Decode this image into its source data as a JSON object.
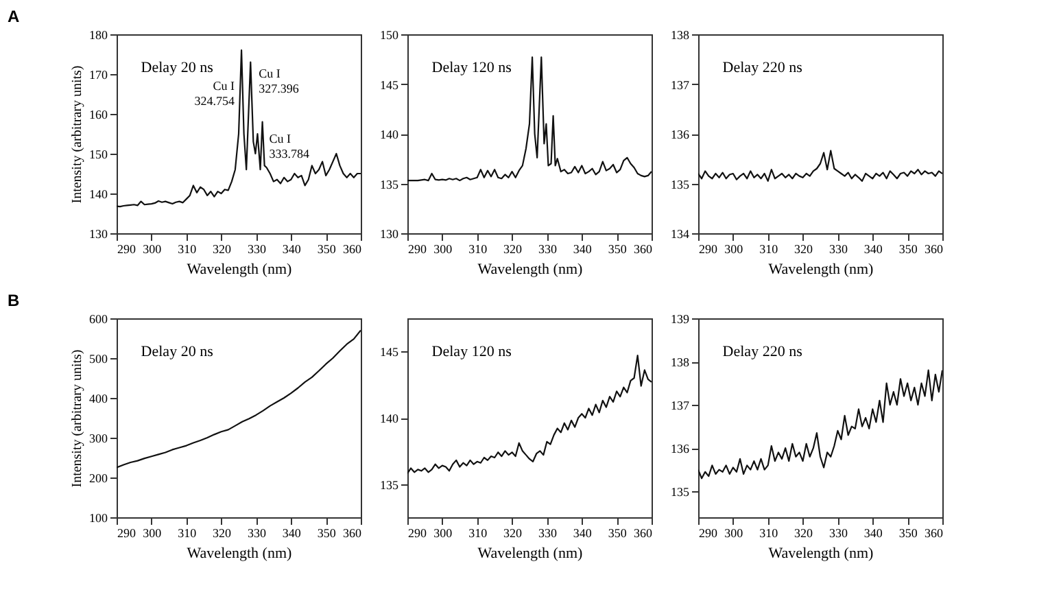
{
  "chart_data": [
    {
      "type": "line",
      "title": "A",
      "xlabel": "Wavelength (nm)",
      "ylabel": "Intensity (arbitrary units)",
      "xlim": [
        290,
        360
      ],
      "ylim": [
        130,
        180
      ],
      "xticks": [
        290,
        300,
        310,
        320,
        330,
        340,
        350,
        360
      ],
      "yticks": [
        130,
        140,
        150,
        160,
        170,
        180
      ],
      "x": [
        290,
        291,
        292,
        293,
        294,
        295,
        296,
        297,
        298,
        299,
        300,
        301,
        302,
        303,
        304,
        305,
        306,
        307,
        308,
        309,
        310,
        311,
        312,
        313,
        314,
        315,
        316,
        317,
        318,
        319,
        320,
        321,
        322,
        323,
        324,
        325,
        325.8,
        326.5,
        327.2,
        328.4,
        329.2,
        329.8,
        330.4,
        331.2,
        331.8,
        332.4,
        333,
        334,
        335,
        336,
        337,
        338,
        339,
        340,
        341,
        342,
        343,
        344,
        345,
        346,
        347,
        348,
        349,
        350,
        351,
        352,
        353,
        354,
        355,
        356,
        357,
        358,
        359,
        360
      ],
      "series": [
        {
          "color": "#111111",
          "values": [
            136.8,
            136.7,
            136.9,
            137,
            137.1,
            137.2,
            137,
            138,
            137.2,
            137.3,
            137.4,
            137.6,
            138.1,
            137.8,
            138,
            137.7,
            137.4,
            137.8,
            138,
            137.7,
            138.6,
            139.5,
            142,
            140.2,
            141.6,
            141,
            139.5,
            140.5,
            139.2,
            140.5,
            140,
            141,
            140.8,
            143,
            146,
            155,
            176,
            155,
            146,
            173,
            153,
            150,
            155,
            146,
            158,
            147,
            146.5,
            145,
            143,
            143.5,
            142.5,
            144,
            143,
            143.5,
            145,
            144,
            144.5,
            142,
            143.5,
            147,
            145,
            146,
            148,
            144.5,
            146,
            148,
            150,
            147,
            145,
            144,
            145,
            144,
            145,
            145
          ]
        }
      ],
      "annotations": [
        "Delay 20 ns",
        {
          "text": "Cu I\n324.754",
          "x": 325.8,
          "y": 176
        },
        {
          "text": "Cu I\n327.396",
          "x": 328.4,
          "y": 173
        },
        {
          "text": "Cu I\n333.784",
          "x": 331.8,
          "y": 158
        }
      ]
    },
    {
      "type": "line",
      "xlabel": "Wavelength (nm)",
      "xlim": [
        290,
        360
      ],
      "ylim": [
        130,
        150
      ],
      "xticks": [
        290,
        300,
        310,
        320,
        330,
        340,
        350,
        360
      ],
      "yticks": [
        130,
        135,
        140,
        145,
        150
      ],
      "x": [
        290,
        291,
        292,
        293,
        294,
        295,
        296,
        297,
        298,
        299,
        300,
        301,
        302,
        303,
        304,
        305,
        306,
        307,
        308,
        309,
        310,
        311,
        312,
        313,
        314,
        315,
        316,
        317,
        318,
        319,
        320,
        321,
        322,
        323,
        324,
        325,
        325.8,
        326.5,
        327.2,
        328.4,
        329.2,
        329.8,
        330.4,
        331.2,
        331.8,
        332.4,
        333,
        334,
        335,
        336,
        337,
        338,
        339,
        340,
        341,
        342,
        343,
        344,
        345,
        346,
        347,
        348,
        349,
        350,
        351,
        352,
        353,
        354,
        355,
        356,
        357,
        358,
        359,
        360
      ],
      "series": [
        {
          "color": "#111111",
          "values": [
            135.3,
            135.3,
            135.3,
            135.3,
            135.35,
            135.4,
            135.3,
            136,
            135.4,
            135.35,
            135.4,
            135.35,
            135.5,
            135.4,
            135.5,
            135.3,
            135.5,
            135.6,
            135.4,
            135.5,
            135.6,
            136.4,
            135.6,
            136.3,
            135.7,
            136.4,
            135.6,
            135.5,
            135.9,
            135.6,
            136.2,
            135.6,
            136.3,
            136.8,
            138.5,
            141,
            147.7,
            140,
            137.6,
            147.7,
            139,
            141,
            136.8,
            137,
            141.8,
            136.8,
            137.5,
            136.2,
            136.4,
            136,
            136.1,
            136.7,
            136.1,
            136.8,
            136,
            136.2,
            136.5,
            135.9,
            136.2,
            137.2,
            136.3,
            136.5,
            136.9,
            136.1,
            136.4,
            137.3,
            137.6,
            137,
            136.6,
            136,
            135.8,
            135.7,
            135.8,
            136.2
          ]
        }
      ],
      "annotations": [
        "Delay 120 ns"
      ]
    },
    {
      "type": "line",
      "xlabel": "Wavelength (nm)",
      "xlim": [
        290,
        360
      ],
      "ylim": [
        134,
        138
      ],
      "xticks": [
        290,
        300,
        310,
        320,
        330,
        340,
        350,
        360
      ],
      "yticks": [
        134,
        135,
        136,
        137,
        138
      ],
      "x": [
        290,
        291,
        292,
        293,
        294,
        295,
        296,
        297,
        298,
        299,
        300,
        301,
        302,
        303,
        304,
        305,
        306,
        307,
        308,
        309,
        310,
        311,
        312,
        313,
        314,
        315,
        316,
        317,
        318,
        319,
        320,
        321,
        322,
        323,
        324,
        325,
        326,
        327,
        328,
        329,
        330,
        331,
        332,
        333,
        334,
        335,
        336,
        337,
        338,
        339,
        340,
        341,
        342,
        343,
        344,
        345,
        346,
        347,
        348,
        349,
        350,
        351,
        352,
        353,
        354,
        355,
        356,
        357,
        358,
        359,
        360
      ],
      "series": [
        {
          "color": "#111111",
          "values": [
            135.2,
            135.1,
            135.25,
            135.15,
            135.1,
            135.2,
            135.12,
            135.22,
            135.1,
            135.18,
            135.2,
            135.08,
            135.15,
            135.2,
            135.1,
            135.25,
            135.12,
            135.18,
            135.1,
            135.2,
            135.05,
            135.28,
            135.1,
            135.15,
            135.2,
            135.12,
            135.18,
            135.1,
            135.2,
            135.15,
            135.12,
            135.2,
            135.15,
            135.25,
            135.3,
            135.4,
            135.62,
            135.28,
            135.66,
            135.3,
            135.25,
            135.2,
            135.15,
            135.22,
            135.1,
            135.18,
            135.12,
            135.05,
            135.2,
            135.15,
            135.1,
            135.2,
            135.15,
            135.22,
            135.1,
            135.25,
            135.18,
            135.1,
            135.2,
            135.22,
            135.15,
            135.25,
            135.2,
            135.28,
            135.18,
            135.25,
            135.2,
            135.22,
            135.15,
            135.25,
            135.2
          ]
        }
      ],
      "annotations": [
        "Delay 220 ns"
      ]
    },
    {
      "type": "line",
      "title": "B",
      "xlabel": "Wavelength (nm)",
      "ylabel": "Intensity (arbitrary units)",
      "xlim": [
        290,
        360
      ],
      "ylim": [
        100,
        600
      ],
      "xticks": [
        290,
        300,
        310,
        320,
        330,
        340,
        350,
        360
      ],
      "yticks": [
        100,
        200,
        300,
        400,
        500,
        600
      ],
      "x": [
        290,
        292,
        294,
        296,
        298,
        300,
        302,
        304,
        306,
        308,
        310,
        312,
        314,
        316,
        318,
        320,
        322,
        324,
        326,
        328,
        330,
        332,
        334,
        336,
        338,
        340,
        342,
        344,
        346,
        348,
        350,
        352,
        354,
        356,
        358,
        360
      ],
      "series": [
        {
          "color": "#111111",
          "values": [
            225,
            232,
            238,
            242,
            248,
            253,
            258,
            263,
            270,
            275,
            280,
            287,
            293,
            300,
            308,
            315,
            320,
            330,
            340,
            348,
            357,
            368,
            380,
            390,
            400,
            412,
            425,
            440,
            452,
            468,
            485,
            500,
            518,
            535,
            548,
            570
          ]
        }
      ],
      "annotations": [
        "Delay 20 ns"
      ]
    },
    {
      "type": "line",
      "xlabel": "Wavelength (nm)",
      "xlim": [
        290,
        360
      ],
      "ylim": [
        132.5,
        147.5
      ],
      "xticks": [
        290,
        300,
        310,
        320,
        330,
        340,
        350,
        360
      ],
      "yticks": [
        135,
        140,
        145
      ],
      "x": [
        290,
        291,
        292,
        293,
        294,
        295,
        296,
        297,
        298,
        299,
        300,
        301,
        302,
        303,
        304,
        305,
        306,
        307,
        308,
        309,
        310,
        311,
        312,
        313,
        314,
        315,
        316,
        317,
        318,
        319,
        320,
        321,
        322,
        323,
        324,
        325,
        326,
        327,
        328,
        329,
        330,
        331,
        332,
        333,
        334,
        335,
        336,
        337,
        338,
        339,
        340,
        341,
        342,
        343,
        344,
        345,
        346,
        347,
        348,
        349,
        350,
        351,
        352,
        353,
        354,
        355,
        356,
        357,
        358,
        359,
        360
      ],
      "series": [
        {
          "color": "#111111",
          "values": [
            135.8,
            136.2,
            135.9,
            136.1,
            136.0,
            136.2,
            135.9,
            136.1,
            136.5,
            136.2,
            136.4,
            136.3,
            136.0,
            136.5,
            136.8,
            136.3,
            136.6,
            136.4,
            136.8,
            136.5,
            136.7,
            136.6,
            137.0,
            136.8,
            137.1,
            137.0,
            137.4,
            137.1,
            137.5,
            137.2,
            137.4,
            137.1,
            138.1,
            137.5,
            137.2,
            136.9,
            136.7,
            137.3,
            137.5,
            137.2,
            138.2,
            138.0,
            138.7,
            139.2,
            138.9,
            139.6,
            139.1,
            139.8,
            139.3,
            140.0,
            140.3,
            140.0,
            140.7,
            140.2,
            141.0,
            140.4,
            141.3,
            140.8,
            141.6,
            141.2,
            142.0,
            141.6,
            142.3,
            141.9,
            142.8,
            143.0,
            144.7,
            142.4,
            143.6,
            142.9,
            142.7
          ]
        }
      ],
      "annotations": [
        "Delay 120 ns"
      ]
    },
    {
      "type": "line",
      "xlabel": "Wavelength (nm)",
      "xlim": [
        290,
        360
      ],
      "ylim": [
        134.4,
        139
      ],
      "xticks": [
        290,
        300,
        310,
        320,
        330,
        340,
        350,
        360
      ],
      "yticks": [
        135,
        136,
        137,
        138,
        139
      ],
      "x": [
        290,
        291,
        292,
        293,
        294,
        295,
        296,
        297,
        298,
        299,
        300,
        301,
        302,
        303,
        304,
        305,
        306,
        307,
        308,
        309,
        310,
        311,
        312,
        313,
        314,
        315,
        316,
        317,
        318,
        319,
        320,
        321,
        322,
        323,
        324,
        325,
        326,
        327,
        328,
        329,
        330,
        331,
        332,
        333,
        334,
        335,
        336,
        337,
        338,
        339,
        340,
        341,
        342,
        343,
        344,
        345,
        346,
        347,
        348,
        349,
        350,
        351,
        352,
        353,
        354,
        355,
        356,
        357,
        358,
        359,
        360
      ],
      "series": [
        {
          "color": "#111111",
          "values": [
            135.5,
            135.3,
            135.45,
            135.35,
            135.6,
            135.4,
            135.5,
            135.45,
            135.6,
            135.4,
            135.55,
            135.45,
            135.75,
            135.4,
            135.6,
            135.5,
            135.7,
            135.5,
            135.75,
            135.5,
            135.6,
            136.05,
            135.7,
            135.9,
            135.75,
            136.0,
            135.7,
            136.1,
            135.8,
            135.9,
            135.7,
            136.1,
            135.8,
            136.0,
            136.35,
            135.8,
            135.55,
            135.9,
            135.8,
            136.05,
            136.4,
            136.2,
            136.75,
            136.3,
            136.5,
            136.45,
            136.9,
            136.5,
            136.7,
            136.45,
            136.9,
            136.6,
            137.1,
            136.6,
            137.5,
            137.0,
            137.3,
            137.0,
            137.6,
            137.2,
            137.5,
            137.1,
            137.4,
            137.0,
            137.5,
            137.2,
            137.8,
            137.1,
            137.7,
            137.3,
            137.8
          ]
        }
      ],
      "annotations": [
        "Delay 220 ns"
      ]
    }
  ]
}
